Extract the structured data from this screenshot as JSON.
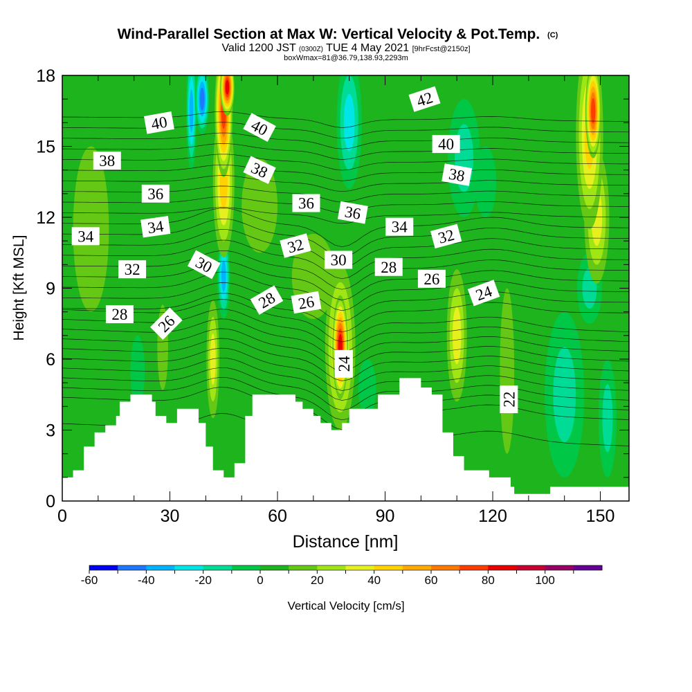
{
  "chart_data": {
    "type": "heatmap",
    "title": "Wind-Parallel Section at Max W: Vertical Velocity & Pot.Temp.",
    "title_mark": "(C)",
    "subtitle_valid": "Valid 1200 JST",
    "subtitle_z": "(0300Z)",
    "subtitle_date": "TUE 4 May 2021",
    "subtitle_fcst": "[9hrFcst@2150z]",
    "subtitle_box": "boxWmax=81@36.79,138.93,2293m",
    "xlabel": "Distance [nm]",
    "ylabel": "Height [Kft MSL]",
    "xlim": [
      0,
      158
    ],
    "ylim": [
      0,
      18
    ],
    "x_ticks": [
      0,
      30,
      60,
      90,
      120,
      150
    ],
    "y_ticks": [
      0,
      3,
      6,
      9,
      12,
      15,
      18
    ],
    "colorbar": {
      "label": "Vertical Velocity [cm/s]",
      "tick_values": [
        -60,
        -40,
        -20,
        0,
        20,
        40,
        60,
        80,
        100
      ],
      "tick_labels": [
        "-60",
        "-40",
        "-20",
        "0",
        "20",
        "40",
        "60",
        "80",
        "100"
      ],
      "levels": [
        -60,
        -50,
        -40,
        -30,
        -20,
        -10,
        0,
        10,
        20,
        30,
        40,
        50,
        60,
        70,
        80,
        90,
        100,
        110
      ],
      "colors": [
        "#0000f0",
        "#1e78ff",
        "#00b4ff",
        "#00e6e6",
        "#00dc96",
        "#00c846",
        "#1eb41e",
        "#64c814",
        "#a0e614",
        "#e6f01e",
        "#ffd200",
        "#ffaa00",
        "#ff7800",
        "#ff3c00",
        "#e60000",
        "#c80032",
        "#960064",
        "#640096"
      ]
    },
    "theta_contours": [
      22,
      24,
      26,
      28,
      30,
      32,
      34,
      36,
      38,
      40,
      42
    ],
    "contour_labels": [
      {
        "text": "40",
        "x": 27,
        "y": 16.0,
        "angle": -10
      },
      {
        "text": "40",
        "x": 55,
        "y": 15.8,
        "angle": 28
      },
      {
        "text": "42",
        "x": 101,
        "y": 17.0,
        "angle": -18
      },
      {
        "text": "40",
        "x": 107,
        "y": 15.1,
        "angle": 0
      },
      {
        "text": "38",
        "x": 12.5,
        "y": 14.4,
        "angle": 0
      },
      {
        "text": "38",
        "x": 55,
        "y": 14.0,
        "angle": 25
      },
      {
        "text": "38",
        "x": 110,
        "y": 13.8,
        "angle": 10
      },
      {
        "text": "36",
        "x": 26,
        "y": 13.0,
        "angle": 0
      },
      {
        "text": "36",
        "x": 68,
        "y": 12.6,
        "angle": 0
      },
      {
        "text": "36",
        "x": 81,
        "y": 12.2,
        "angle": 10
      },
      {
        "text": "34",
        "x": 6.5,
        "y": 11.2,
        "angle": 0
      },
      {
        "text": "34",
        "x": 26,
        "y": 11.6,
        "angle": -8
      },
      {
        "text": "34",
        "x": 94,
        "y": 11.6,
        "angle": 0
      },
      {
        "text": "32",
        "x": 19.5,
        "y": 9.8,
        "angle": 0
      },
      {
        "text": "32",
        "x": 65,
        "y": 10.8,
        "angle": -15
      },
      {
        "text": "32",
        "x": 107,
        "y": 11.2,
        "angle": -15
      },
      {
        "text": "30",
        "x": 39.5,
        "y": 10.0,
        "angle": 28
      },
      {
        "text": "30",
        "x": 77,
        "y": 10.2,
        "angle": 0
      },
      {
        "text": "28",
        "x": 16,
        "y": 7.9,
        "angle": 0
      },
      {
        "text": "28",
        "x": 57,
        "y": 8.5,
        "angle": -30
      },
      {
        "text": "28",
        "x": 91,
        "y": 9.9,
        "angle": 0
      },
      {
        "text": "26",
        "x": 29,
        "y": 7.5,
        "angle": -45
      },
      {
        "text": "26",
        "x": 68,
        "y": 8.4,
        "angle": -10
      },
      {
        "text": "26",
        "x": 103,
        "y": 9.4,
        "angle": 0
      },
      {
        "text": "24",
        "x": 78.5,
        "y": 5.8,
        "angle": -90
      },
      {
        "text": "24",
        "x": 117.5,
        "y": 8.8,
        "angle": -20
      },
      {
        "text": "22",
        "x": 124.5,
        "y": 4.3,
        "angle": -90
      }
    ],
    "terrain": [
      [
        0,
        1.0
      ],
      [
        3,
        1.0
      ],
      [
        3,
        1.3
      ],
      [
        6,
        1.3
      ],
      [
        6,
        2.3
      ],
      [
        9,
        2.3
      ],
      [
        9,
        2.9
      ],
      [
        12,
        2.9
      ],
      [
        12,
        3.2
      ],
      [
        15,
        3.2
      ],
      [
        15,
        3.6
      ],
      [
        16,
        3.6
      ],
      [
        16,
        4.2
      ],
      [
        19,
        4.2
      ],
      [
        19,
        4.5
      ],
      [
        25,
        4.5
      ],
      [
        25,
        4.2
      ],
      [
        26,
        4.2
      ],
      [
        26,
        3.6
      ],
      [
        29,
        3.6
      ],
      [
        29,
        3.3
      ],
      [
        32,
        3.3
      ],
      [
        32,
        3.9
      ],
      [
        38,
        3.9
      ],
      [
        38,
        3.3
      ],
      [
        40,
        3.3
      ],
      [
        40,
        2.3
      ],
      [
        42,
        2.3
      ],
      [
        42,
        1.3
      ],
      [
        45,
        1.3
      ],
      [
        45,
        1.0
      ],
      [
        48,
        1.0
      ],
      [
        48,
        1.6
      ],
      [
        51,
        1.6
      ],
      [
        51,
        3.6
      ],
      [
        53,
        3.6
      ],
      [
        53,
        4.5
      ],
      [
        65,
        4.5
      ],
      [
        65,
        4.2
      ],
      [
        67,
        4.2
      ],
      [
        67,
        3.9
      ],
      [
        70,
        3.9
      ],
      [
        70,
        3.6
      ],
      [
        72,
        3.6
      ],
      [
        72,
        3.3
      ],
      [
        75,
        3.3
      ],
      [
        75,
        3.0
      ],
      [
        78,
        3.0
      ],
      [
        78,
        3.3
      ],
      [
        80,
        3.3
      ],
      [
        80,
        3.9
      ],
      [
        88,
        3.9
      ],
      [
        88,
        4.5
      ],
      [
        94,
        4.5
      ],
      [
        94,
        5.2
      ],
      [
        100,
        5.2
      ],
      [
        100,
        4.8
      ],
      [
        103,
        4.8
      ],
      [
        103,
        4.5
      ],
      [
        106,
        4.5
      ],
      [
        106,
        2.9
      ],
      [
        109,
        2.9
      ],
      [
        109,
        1.9
      ],
      [
        112,
        1.9
      ],
      [
        112,
        1.3
      ],
      [
        119,
        1.3
      ],
      [
        119,
        1.0
      ],
      [
        125,
        1.0
      ],
      [
        125,
        0.6
      ],
      [
        126,
        0.6
      ],
      [
        126,
        0.3
      ],
      [
        136,
        0.3
      ],
      [
        136,
        0.6
      ],
      [
        158,
        0.6
      ]
    ],
    "w_cells": [
      {
        "x": 45,
        "y": 16.5,
        "rx": 2.5,
        "ry": 2.8,
        "w": 70
      },
      {
        "x": 45,
        "y": 13.5,
        "rx": 3.0,
        "ry": 3.2,
        "w": 45
      },
      {
        "x": 46,
        "y": 17.5,
        "rx": 2.0,
        "ry": 1.2,
        "w": 85
      },
      {
        "x": 147,
        "y": 15.5,
        "rx": 3.8,
        "ry": 4.0,
        "w": 45
      },
      {
        "x": 148,
        "y": 16.5,
        "rx": 2.2,
        "ry": 2.0,
        "w": 75
      },
      {
        "x": 149,
        "y": 12.0,
        "rx": 3.5,
        "ry": 2.8,
        "w": 30
      },
      {
        "x": 77.5,
        "y": 6.5,
        "rx": 4.2,
        "ry": 3.5,
        "w": 40
      },
      {
        "x": 77.5,
        "y": 6.5,
        "rx": 2.2,
        "ry": 2.2,
        "w": 80
      },
      {
        "x": 110,
        "y": 7.0,
        "rx": 2.8,
        "ry": 2.8,
        "w": 35
      },
      {
        "x": 42,
        "y": 6.0,
        "rx": 1.8,
        "ry": 2.5,
        "w": 38
      },
      {
        "x": 28,
        "y": 6.5,
        "rx": 1.5,
        "ry": 1.8,
        "w": 15
      },
      {
        "x": 55,
        "y": 12.5,
        "rx": 5.0,
        "ry": 2.0,
        "w": 15
      },
      {
        "x": 70,
        "y": 9.5,
        "rx": 6.0,
        "ry": 1.8,
        "w": 12
      },
      {
        "x": 124,
        "y": 5.5,
        "rx": 2.0,
        "ry": 3.5,
        "w": 18
      },
      {
        "x": 39,
        "y": 17.0,
        "rx": 2.0,
        "ry": 1.5,
        "w": -50
      },
      {
        "x": 36,
        "y": 16.5,
        "rx": 1.5,
        "ry": 2.5,
        "w": -40
      },
      {
        "x": 45,
        "y": 9.5,
        "rx": 1.8,
        "ry": 1.8,
        "w": -40
      },
      {
        "x": 80,
        "y": 16.0,
        "rx": 3.5,
        "ry": 2.8,
        "w": -30
      },
      {
        "x": 112,
        "y": 14.5,
        "rx": 4.5,
        "ry": 2.5,
        "w": -20
      },
      {
        "x": 140,
        "y": 4.5,
        "rx": 5.5,
        "ry": 3.5,
        "w": -20
      },
      {
        "x": 85,
        "y": 4.8,
        "rx": 2.5,
        "ry": 1.2,
        "w": -15
      },
      {
        "x": 21,
        "y": 5.5,
        "rx": 2.0,
        "ry": 1.5,
        "w": -15
      },
      {
        "x": 152,
        "y": 3.5,
        "rx": 2.5,
        "ry": 2.5,
        "w": -25
      },
      {
        "x": 118,
        "y": 13.5,
        "rx": 3.0,
        "ry": 1.5,
        "w": -15
      },
      {
        "x": 8,
        "y": 11.5,
        "rx": 5.0,
        "ry": 3.5,
        "w": 10
      },
      {
        "x": 147,
        "y": 9.0,
        "rx": 3.5,
        "ry": 1.5,
        "w": -20
      }
    ]
  }
}
